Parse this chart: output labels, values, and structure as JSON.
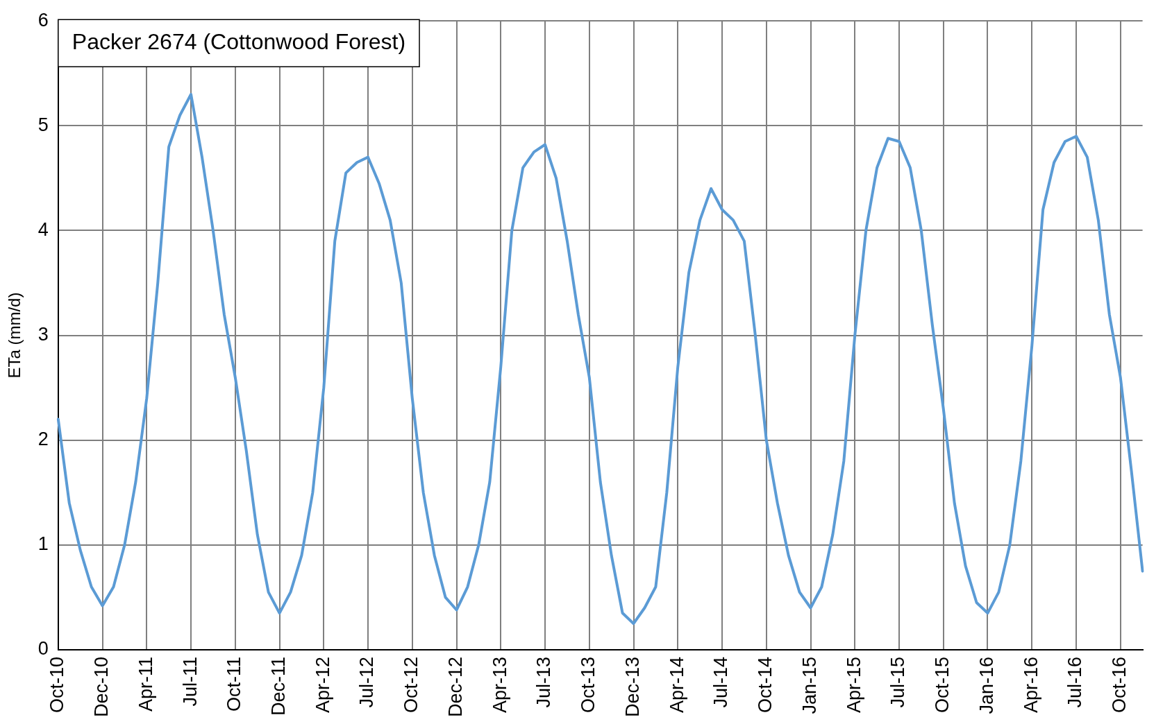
{
  "chart_data": {
    "type": "line",
    "title": "Packer 2674 (Cottonwood Forest)",
    "ylabel": "ETa (mm/d)",
    "categories": [
      "Oct-10",
      null,
      null,
      null,
      "Dec-10",
      null,
      null,
      null,
      "Apr-11",
      null,
      null,
      null,
      "Jul-11",
      null,
      null,
      null,
      "Oct-11",
      null,
      null,
      null,
      "Dec-11",
      null,
      null,
      null,
      "Apr-12",
      null,
      null,
      null,
      "Jul-12",
      null,
      null,
      null,
      "Oct-12",
      null,
      null,
      null,
      "Dec-12",
      null,
      null,
      null,
      "Apr-13",
      null,
      null,
      null,
      "Jul-13",
      null,
      null,
      null,
      "Oct-13",
      null,
      null,
      null,
      "Dec-13",
      null,
      null,
      null,
      "Apr-14",
      null,
      null,
      null,
      "Jul-14",
      null,
      null,
      null,
      "Oct-14",
      null,
      null,
      null,
      "Jan-15",
      null,
      null,
      null,
      "Apr-15",
      null,
      null,
      null,
      "Jul-15",
      null,
      null,
      null,
      "Oct-15",
      null,
      null,
      null,
      "Jan-16",
      null,
      null,
      null,
      "Apr-16",
      null,
      null,
      null,
      "Jul-16",
      null,
      null,
      null,
      "Oct-16",
      null,
      null
    ],
    "series": [
      {
        "color": "#5b9bd5",
        "values": [
          2.2,
          1.4,
          0.95,
          0.6,
          0.42,
          0.6,
          1.0,
          1.6,
          2.4,
          3.5,
          4.8,
          5.1,
          5.3,
          4.7,
          4.0,
          3.2,
          2.6,
          1.9,
          1.1,
          0.55,
          0.35,
          0.55,
          0.9,
          1.5,
          2.5,
          3.9,
          4.55,
          4.65,
          4.7,
          4.45,
          4.1,
          3.5,
          2.4,
          1.5,
          0.9,
          0.5,
          0.38,
          0.6,
          1.0,
          1.6,
          2.7,
          4.0,
          4.6,
          4.75,
          4.82,
          4.5,
          3.9,
          3.2,
          2.6,
          1.6,
          0.9,
          0.35,
          0.25,
          0.4,
          0.6,
          1.5,
          2.7,
          3.6,
          4.1,
          4.4,
          4.2,
          4.1,
          3.9,
          3.0,
          2.0,
          1.4,
          0.9,
          0.55,
          0.4,
          0.6,
          1.1,
          1.8,
          3.0,
          4.0,
          4.6,
          4.88,
          4.85,
          4.6,
          4.0,
          3.1,
          2.3,
          1.4,
          0.8,
          0.45,
          0.35,
          0.55,
          1.0,
          1.8,
          2.9,
          4.2,
          4.65,
          4.85,
          4.9,
          4.7,
          4.1,
          3.2,
          2.6,
          1.7,
          0.75
        ]
      }
    ],
    "ylim": [
      0,
      6
    ],
    "yticks": [
      0,
      1,
      2,
      3,
      4,
      5,
      6
    ],
    "grid": true,
    "marker": "none",
    "line_style": "solid"
  }
}
